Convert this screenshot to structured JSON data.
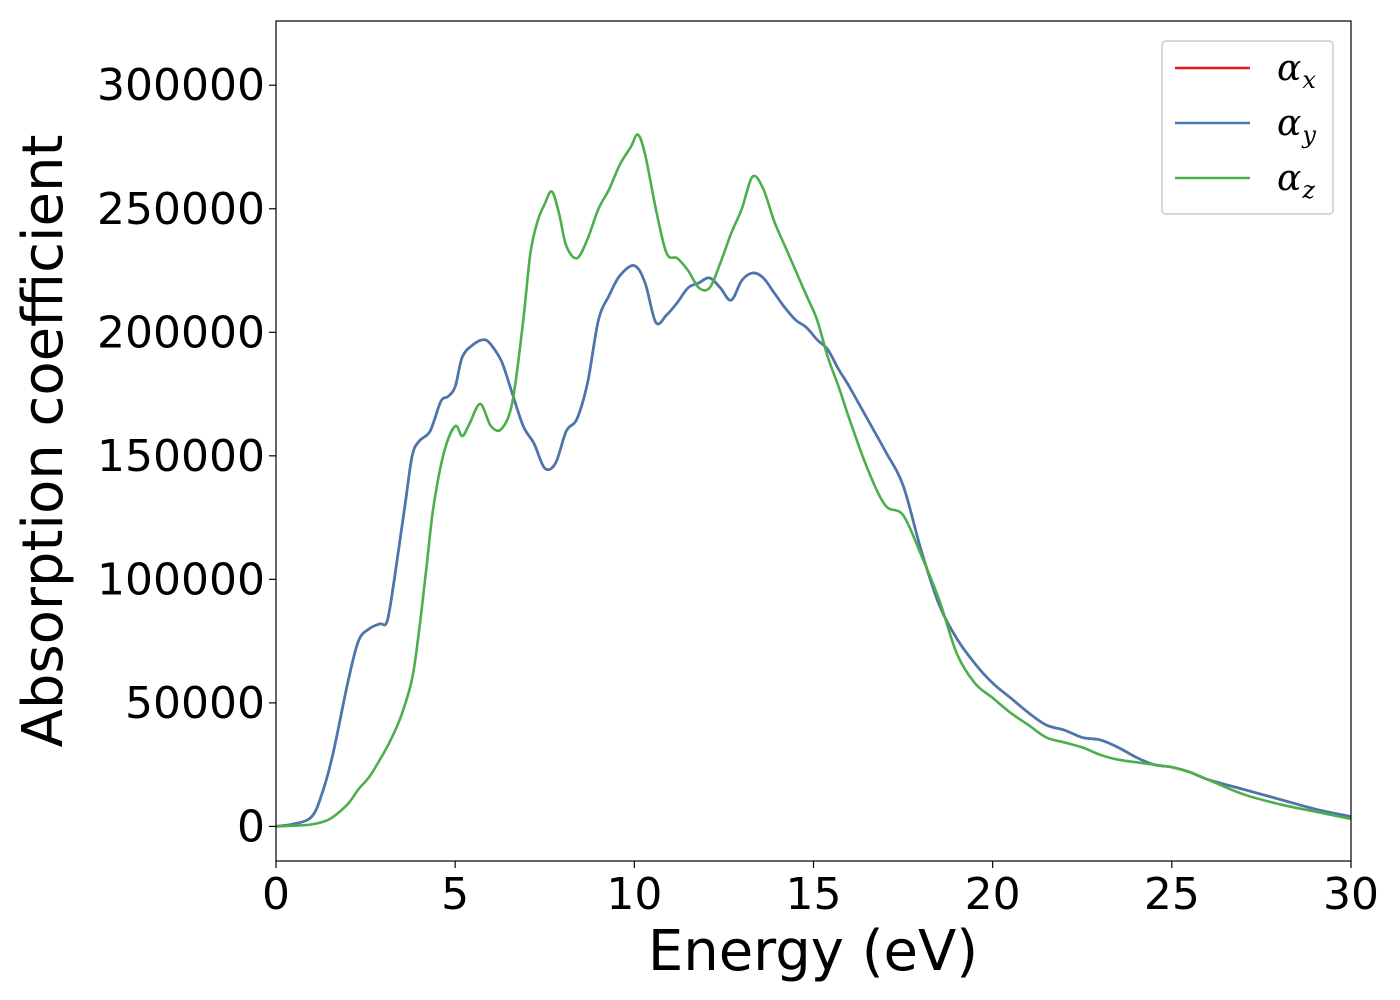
{
  "chart_data": {
    "type": "line",
    "title": "",
    "xlabel": "Energy (eV)",
    "ylabel": "Absorption coefficient",
    "xlim": [
      0,
      30
    ],
    "ylim": [
      -14000,
      326000
    ],
    "xticks": [
      0,
      5,
      10,
      15,
      20,
      25,
      30
    ],
    "xtick_labels": [
      "0",
      "5",
      "10",
      "15",
      "20",
      "25",
      "30"
    ],
    "yticks": [
      0,
      50000,
      100000,
      150000,
      200000,
      250000,
      300000
    ],
    "ytick_labels": [
      "0",
      "50000",
      "100000",
      "150000",
      "200000",
      "250000",
      "300000"
    ],
    "grid": false,
    "legend_position": "top-right",
    "series": [
      {
        "name": "αx",
        "symbol": "α",
        "subscript": "x",
        "color": "#e41a1c",
        "x": [
          0,
          0.5,
          1.0,
          1.3,
          1.6,
          2.0,
          2.3,
          2.6,
          2.9,
          3.1,
          3.3,
          3.6,
          3.8,
          4.0,
          4.3,
          4.6,
          4.8,
          5.0,
          5.2,
          5.5,
          5.8,
          6.0,
          6.3,
          6.6,
          6.9,
          7.2,
          7.5,
          7.8,
          8.1,
          8.4,
          8.7,
          9.0,
          9.3,
          9.6,
          10.0,
          10.3,
          10.6,
          10.9,
          11.2,
          11.5,
          11.8,
          12.1,
          12.4,
          12.7,
          13.0,
          13.3,
          13.6,
          13.9,
          14.2,
          14.5,
          14.8,
          15.1,
          15.4,
          15.7,
          16.0,
          16.5,
          17.0,
          17.5,
          18.0,
          18.5,
          19.0,
          19.5,
          20.0,
          20.5,
          21.0,
          21.5,
          22.0,
          22.5,
          23.0,
          23.5,
          24.0,
          24.5,
          25.0,
          25.5,
          26.0,
          27.0,
          28.0,
          29.0,
          30.0
        ],
        "y": [
          0,
          1000,
          4000,
          14000,
          30000,
          58000,
          75000,
          80000,
          82000,
          83000,
          100000,
          130000,
          150000,
          156000,
          160000,
          172000,
          174000,
          178000,
          190000,
          195000,
          197000,
          195000,
          188000,
          175000,
          162000,
          155000,
          145000,
          147000,
          160000,
          165000,
          180000,
          205000,
          215000,
          223000,
          227000,
          220000,
          204000,
          207000,
          212000,
          218000,
          220000,
          222000,
          218000,
          213000,
          221000,
          224000,
          222000,
          216000,
          210000,
          205000,
          202000,
          197000,
          193000,
          185000,
          178000,
          165000,
          152000,
          138000,
          112000,
          90000,
          76000,
          66000,
          58000,
          52000,
          46000,
          41000,
          39000,
          36000,
          35000,
          32000,
          28000,
          25000,
          24000,
          22000,
          19000,
          15000,
          11000,
          7000,
          4000
        ]
      },
      {
        "name": "αy",
        "symbol": "α",
        "subscript": "y",
        "color": "#4679b3",
        "x": [
          0,
          0.5,
          1.0,
          1.3,
          1.6,
          2.0,
          2.3,
          2.6,
          2.9,
          3.1,
          3.3,
          3.6,
          3.8,
          4.0,
          4.3,
          4.6,
          4.8,
          5.0,
          5.2,
          5.5,
          5.8,
          6.0,
          6.3,
          6.6,
          6.9,
          7.2,
          7.5,
          7.8,
          8.1,
          8.4,
          8.7,
          9.0,
          9.3,
          9.6,
          10.0,
          10.3,
          10.6,
          10.9,
          11.2,
          11.5,
          11.8,
          12.1,
          12.4,
          12.7,
          13.0,
          13.3,
          13.6,
          13.9,
          14.2,
          14.5,
          14.8,
          15.1,
          15.4,
          15.7,
          16.0,
          16.5,
          17.0,
          17.5,
          18.0,
          18.5,
          19.0,
          19.5,
          20.0,
          20.5,
          21.0,
          21.5,
          22.0,
          22.5,
          23.0,
          23.5,
          24.0,
          24.5,
          25.0,
          25.5,
          26.0,
          27.0,
          28.0,
          29.0,
          30.0
        ],
        "y": [
          0,
          1000,
          4000,
          14000,
          30000,
          58000,
          75000,
          80000,
          82000,
          83000,
          100000,
          130000,
          150000,
          156000,
          160000,
          172000,
          174000,
          178000,
          190000,
          195000,
          197000,
          195000,
          188000,
          175000,
          162000,
          155000,
          145000,
          147000,
          160000,
          165000,
          180000,
          205000,
          215000,
          223000,
          227000,
          220000,
          204000,
          207000,
          212000,
          218000,
          220000,
          222000,
          218000,
          213000,
          221000,
          224000,
          222000,
          216000,
          210000,
          205000,
          202000,
          197000,
          193000,
          185000,
          178000,
          165000,
          152000,
          138000,
          112000,
          90000,
          76000,
          66000,
          58000,
          52000,
          46000,
          41000,
          39000,
          36000,
          35000,
          32000,
          28000,
          25000,
          24000,
          22000,
          19000,
          15000,
          11000,
          7000,
          4000
        ]
      },
      {
        "name": "αz",
        "symbol": "α",
        "subscript": "z",
        "color": "#4daf4a",
        "x": [
          0,
          0.5,
          1.0,
          1.5,
          2.0,
          2.3,
          2.6,
          2.9,
          3.2,
          3.5,
          3.8,
          4.0,
          4.2,
          4.4,
          4.7,
          5.0,
          5.2,
          5.4,
          5.7,
          6.0,
          6.3,
          6.6,
          6.9,
          7.1,
          7.3,
          7.5,
          7.7,
          7.9,
          8.1,
          8.4,
          8.7,
          9.0,
          9.3,
          9.6,
          9.9,
          10.1,
          10.3,
          10.6,
          10.9,
          11.2,
          11.5,
          11.8,
          12.1,
          12.4,
          12.7,
          13.0,
          13.3,
          13.6,
          13.9,
          14.2,
          14.5,
          14.8,
          15.1,
          15.4,
          15.7,
          16.0,
          16.5,
          17.0,
          17.5,
          18.0,
          18.5,
          19.0,
          19.5,
          20.0,
          20.5,
          21.0,
          21.5,
          22.0,
          22.5,
          23.0,
          23.5,
          24.0,
          24.5,
          25.0,
          25.5,
          26.0,
          27.0,
          28.0,
          29.0,
          30.0
        ],
        "y": [
          0,
          300,
          800,
          3000,
          9000,
          15000,
          20000,
          27000,
          35000,
          45000,
          60000,
          80000,
          105000,
          130000,
          152000,
          162000,
          158000,
          163000,
          171000,
          162000,
          161000,
          172000,
          205000,
          232000,
          245000,
          252000,
          257000,
          248000,
          235000,
          230000,
          238000,
          250000,
          258000,
          268000,
          275000,
          280000,
          272000,
          250000,
          232000,
          230000,
          225000,
          218000,
          218000,
          228000,
          240000,
          250000,
          263000,
          258000,
          245000,
          235000,
          225000,
          215000,
          205000,
          190000,
          178000,
          165000,
          145000,
          130000,
          126000,
          110000,
          92000,
          70000,
          58000,
          52000,
          46000,
          41000,
          36000,
          34000,
          32000,
          29000,
          27000,
          26000,
          25000,
          24000,
          22000,
          19000,
          13000,
          9000,
          6000,
          3000
        ]
      }
    ]
  }
}
